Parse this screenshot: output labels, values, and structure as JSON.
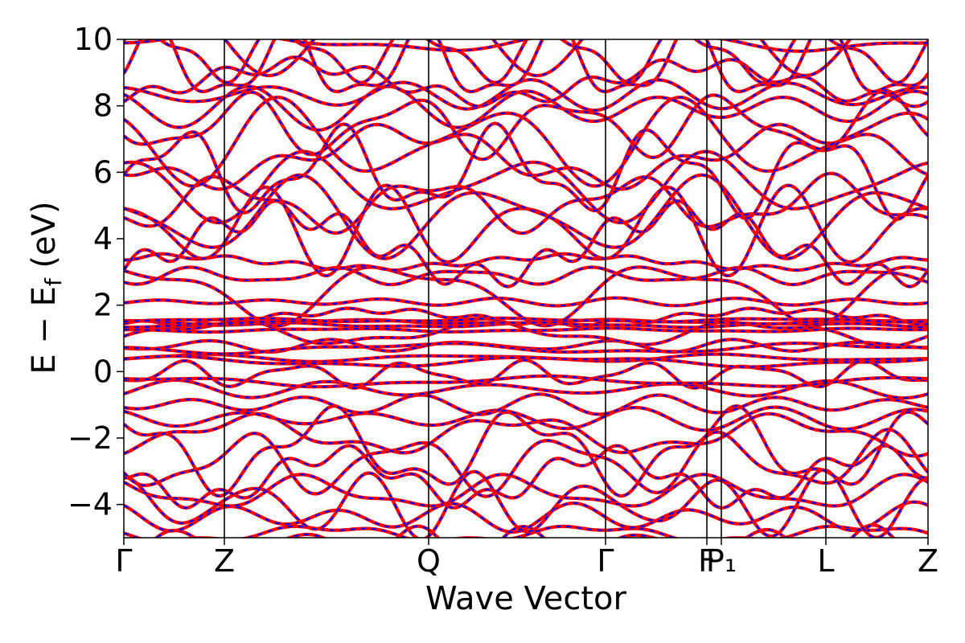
{
  "chart_data": {
    "type": "line",
    "title": "",
    "xlabel": "Wave Vector",
    "ylabel": "E − E_f (eV)",
    "ylabel_main": "E − E",
    "ylabel_sub": "f",
    "ylabel_unit": " (eV)",
    "ylim": [
      -5,
      10
    ],
    "yticks": [
      {
        "value": 10,
        "label": "10"
      },
      {
        "value": 8,
        "label": "8"
      },
      {
        "value": 6,
        "label": "6"
      },
      {
        "value": 4,
        "label": "4"
      },
      {
        "value": 2,
        "label": "2"
      },
      {
        "value": 0,
        "label": "0"
      },
      {
        "value": -2,
        "label": "−2"
      },
      {
        "value": -4,
        "label": "−4"
      }
    ],
    "xlim": [
      0,
      1
    ],
    "kpoints": [
      {
        "pos": 0.0,
        "label": "Γ"
      },
      {
        "pos": 0.125,
        "label": "Z"
      },
      {
        "pos": 0.379,
        "label": "Q"
      },
      {
        "pos": 0.599,
        "label": "Γ"
      },
      {
        "pos": 0.725,
        "label": "F"
      },
      {
        "pos": 0.743,
        "label": "P₁"
      },
      {
        "pos": 0.873,
        "label": "L"
      },
      {
        "pos": 1.0,
        "label": "Z"
      }
    ],
    "grid": false,
    "series": [
      {
        "color": "#ff0000",
        "style": "solid"
      },
      {
        "color": "#0000ff",
        "style": "dashed"
      }
    ]
  }
}
